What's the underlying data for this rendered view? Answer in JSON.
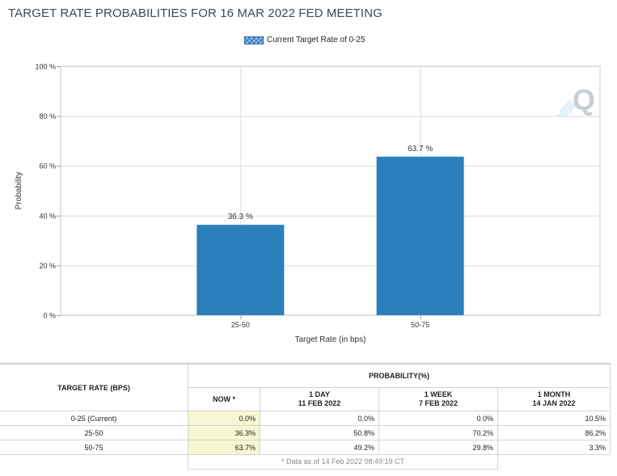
{
  "title": "TARGET RATE PROBABILITIES FOR 16 MAR 2022 FED MEETING",
  "legend": {
    "label": "Current Target Rate of 0-25"
  },
  "chart_data": {
    "type": "bar",
    "categories": [
      "25-50",
      "50-75"
    ],
    "series": [
      {
        "name": "Current Target Rate of 0-25",
        "values": [
          36.3,
          63.7
        ]
      }
    ],
    "data_labels": [
      "36.3 %",
      "63.7 %"
    ],
    "xlabel": "Target Rate (in bps)",
    "ylabel": "Probability",
    "ylim": [
      0,
      100
    ],
    "yticks": [
      0,
      20,
      40,
      60,
      80,
      100
    ],
    "ytick_labels": [
      "0 %",
      "20 %",
      "40 %",
      "60 %",
      "80 %",
      "100 %"
    ],
    "grid": true,
    "bar_color": "#2b7fbb",
    "legend_position": "top-center"
  },
  "table": {
    "rate_header": "TARGET RATE (BPS)",
    "prob_header": "PROBABILITY(%)",
    "columns": [
      {
        "line1": "NOW *",
        "line2": ""
      },
      {
        "line1": "1 DAY",
        "line2": "11 FEB 2022"
      },
      {
        "line1": "1 WEEK",
        "line2": "7 FEB 2022"
      },
      {
        "line1": "1 MONTH",
        "line2": "14 JAN 2022"
      }
    ],
    "rows": [
      {
        "rate": "0-25 (Current)",
        "values": [
          "0.0%",
          "0.0%",
          "0.0%",
          "10.5%"
        ]
      },
      {
        "rate": "25-50",
        "values": [
          "36.3%",
          "50.8%",
          "70.2%",
          "86.2%"
        ]
      },
      {
        "rate": "50-75",
        "values": [
          "63.7%",
          "49.2%",
          "29.8%",
          "3.3%"
        ]
      }
    ],
    "footnote": "* Data as of 14 Feb 2022 08:49:19 CT"
  }
}
